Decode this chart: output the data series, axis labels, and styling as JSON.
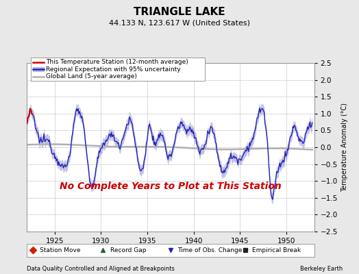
{
  "title": "TRIANGLE LAKE",
  "subtitle": "44.133 N, 123.617 W (United States)",
  "ylabel": "Temperature Anomaly (°C)",
  "xlim": [
    1922.0,
    1953.0
  ],
  "ylim": [
    -2.5,
    2.5
  ],
  "xticks": [
    1925,
    1930,
    1935,
    1940,
    1945,
    1950
  ],
  "yticks": [
    -2.5,
    -2,
    -1.5,
    -1,
    -0.5,
    0,
    0.5,
    1,
    1.5,
    2,
    2.5
  ],
  "regional_color": "#2222bb",
  "regional_fill_color": "#8888cc",
  "global_color": "#b0b0b0",
  "station_color": "#cc0000",
  "annotation_text": "No Complete Years to Plot at This Station",
  "annotation_color": "#cc0000",
  "footer_left": "Data Quality Controlled and Aligned at Breakpoints",
  "footer_right": "Berkeley Earth",
  "background_color": "#e8e8e8",
  "plot_bg_color": "#ffffff",
  "grid_color": "#cccccc",
  "title_fontsize": 11,
  "subtitle_fontsize": 8,
  "ylabel_fontsize": 7,
  "tick_fontsize": 7.5,
  "legend_fontsize": 6.5,
  "annotation_fontsize": 10,
  "footer_fontsize": 6
}
